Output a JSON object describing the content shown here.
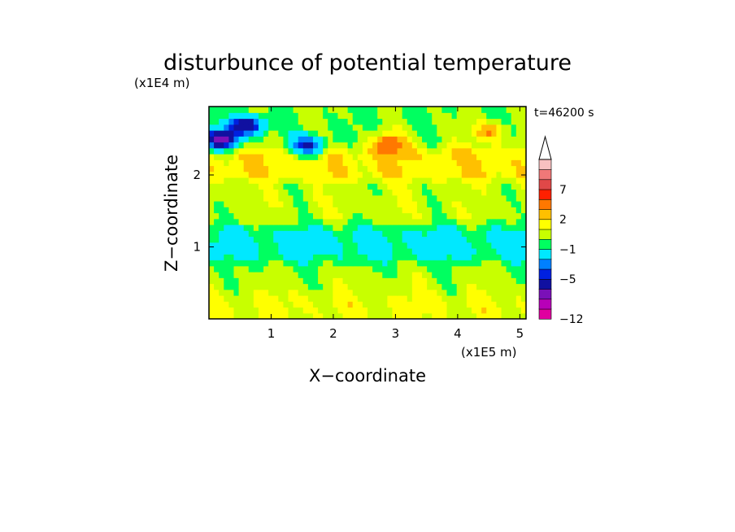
{
  "chart_data": {
    "type": "heatmap",
    "title": "disturbunce of potential temperature",
    "xlabel": "X−coordinate",
    "ylabel": "Z−coordinate",
    "x_unit": "(x1E5 m)",
    "y_unit": "(x1E4 m)",
    "time_label": "t=46200 s",
    "xlim": [
      0,
      5.1
    ],
    "ylim": [
      0,
      2.95
    ],
    "x_ticks": [
      {
        "value": 1,
        "label": "1"
      },
      {
        "value": 2,
        "label": "2"
      },
      {
        "value": 3,
        "label": "3"
      },
      {
        "value": 4,
        "label": "4"
      },
      {
        "value": 5,
        "label": "5"
      }
    ],
    "y_ticks": [
      {
        "value": 1,
        "label": "1"
      },
      {
        "value": 2,
        "label": "2"
      }
    ],
    "colorbar": {
      "levels": [
        -12,
        -10,
        -8,
        -7,
        -5,
        -4,
        -3,
        -1,
        0,
        1,
        2,
        3,
        5,
        7,
        8,
        10
      ],
      "colors": [
        "#e0009f",
        "#b800b8",
        "#7a10b8",
        "#1010a0",
        "#0020e0",
        "#0080ff",
        "#00e8ff",
        "#00ff60",
        "#c8ff00",
        "#ffff00",
        "#ffc000",
        "#ff7800",
        "#ff2000",
        "#e04848",
        "#f07878",
        "#f8c0c0"
      ],
      "labels": [
        {
          "value": -12,
          "label": "−12"
        },
        {
          "value": -5,
          "label": "−5"
        },
        {
          "value": -1,
          "label": "−1"
        },
        {
          "value": 2,
          "label": "2"
        },
        {
          "value": 7,
          "label": "7"
        }
      ],
      "extend": "max"
    },
    "field_description": {
      "grid_nx": 64,
      "grid_nz": 36,
      "features": [
        {
          "kind": "band",
          "z_center": 0.22,
          "value": 1.2,
          "note": "yellow/green layer near ground"
        },
        {
          "kind": "band",
          "z_center": 0.55,
          "value": 0.3,
          "note": "green layer"
        },
        {
          "kind": "band",
          "z_center": 1.05,
          "value": -1.4,
          "note": "cyan band"
        },
        {
          "kind": "band",
          "z_center": 1.55,
          "value": 0.6,
          "note": "green/yellow layer"
        },
        {
          "kind": "band",
          "z_center": 2.15,
          "value": 1.8,
          "note": "yellow/orange wave layer"
        },
        {
          "kind": "blob",
          "x": 2.9,
          "z": 2.45,
          "value": 3.5,
          "note": "orange maximum"
        },
        {
          "kind": "blob",
          "x": 0.6,
          "z": 2.7,
          "value": -6.5,
          "note": "blue minimum"
        },
        {
          "kind": "blob",
          "x": 1.6,
          "z": 2.4,
          "value": -6.0,
          "note": "blue minimum"
        },
        {
          "kind": "blob",
          "x": 0.2,
          "z": 2.5,
          "value": -7.5,
          "note": "dark blue minimum"
        },
        {
          "kind": "blob",
          "x": 4.5,
          "z": 2.6,
          "value": 3.0,
          "note": "orange maximum"
        }
      ]
    }
  }
}
